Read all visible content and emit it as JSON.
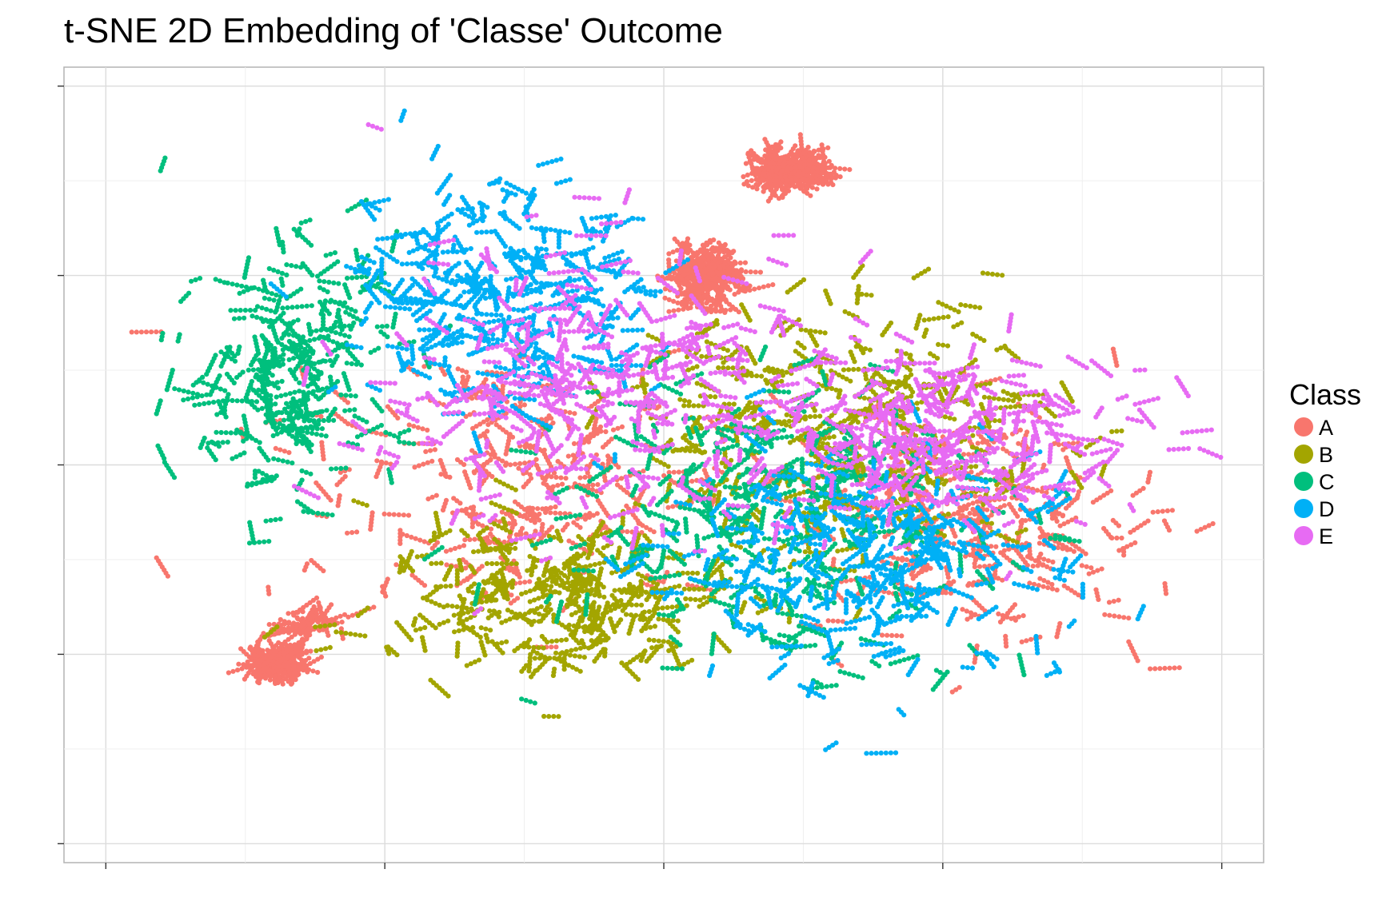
{
  "chart_data": {
    "type": "scatter",
    "title": "t-SNE 2D Embedding of 'Classe' Outcome",
    "xlabel": "",
    "ylabel": "",
    "grid": true,
    "legend_position": "right",
    "legend_title": "Class",
    "xlim": [
      -43,
      43
    ],
    "ylim": [
      -42,
      42
    ],
    "series": [
      {
        "name": "A",
        "color": "#F8766D",
        "clusters": [
          {
            "x": 9,
            "y": 31,
            "sx": 2.2,
            "sy": 1.6,
            "n": 160
          },
          {
            "x": 3,
            "y": 20,
            "sx": 1.9,
            "sy": 2.6,
            "n": 170
          },
          {
            "x": -28,
            "y": -21,
            "sx": 1.6,
            "sy": 1.0,
            "n": 110
          },
          {
            "x": -26,
            "y": -17,
            "sx": 2.0,
            "sy": 1.3,
            "n": 40
          },
          {
            "x": -10,
            "y": -1,
            "sx": 14,
            "sy": 13,
            "n": 200
          },
          {
            "x": 22,
            "y": -6,
            "sx": 12,
            "sy": 11,
            "n": 200
          }
        ]
      },
      {
        "name": "B",
        "color": "#A3A500",
        "clusters": [
          {
            "x": 13,
            "y": 4,
            "sx": 14,
            "sy": 12,
            "n": 260
          },
          {
            "x": -8,
            "y": -14,
            "sx": 12,
            "sy": 8,
            "n": 240
          }
        ]
      },
      {
        "name": "C",
        "color": "#00BF7D",
        "clusters": [
          {
            "x": -27,
            "y": 10,
            "sx": 7,
            "sy": 12,
            "n": 220
          },
          {
            "x": 8,
            "y": -6,
            "sx": 14,
            "sy": 13,
            "n": 260
          }
        ]
      },
      {
        "name": "D",
        "color": "#00B0F6",
        "clusters": [
          {
            "x": -12,
            "y": 18,
            "sx": 10,
            "sy": 11,
            "n": 260
          },
          {
            "x": 14,
            "y": -10,
            "sx": 13,
            "sy": 11,
            "n": 260
          }
        ]
      },
      {
        "name": "E",
        "color": "#E76BF3",
        "clusters": [
          {
            "x": -5,
            "y": 8,
            "sx": 14,
            "sy": 14,
            "n": 260
          },
          {
            "x": 20,
            "y": 3,
            "sx": 13,
            "sy": 9,
            "n": 240
          }
        ]
      }
    ]
  }
}
